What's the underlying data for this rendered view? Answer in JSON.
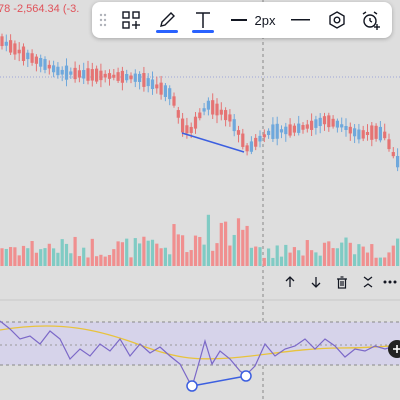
{
  "ticker": {
    "text": "78  -2,564.34 (-3.",
    "color": "#e0525a"
  },
  "toolbar": {
    "items": [
      {
        "icon": "drag-handle-icon"
      },
      {
        "icon": "templates-icon"
      },
      {
        "icon": "pencil-icon",
        "underline_color": "#2962ff"
      },
      {
        "icon": "text-icon",
        "underline_color": "#2962ff"
      },
      {
        "icon": "line-thickness-icon",
        "label": "2px"
      },
      {
        "icon": "line-style-icon"
      },
      {
        "icon": "hexagon-settings-icon"
      },
      {
        "icon": "alarm-add-icon"
      },
      {
        "icon": "more-icon"
      }
    ]
  },
  "mini_toolbar": {
    "items": [
      "arrow-up-icon",
      "arrow-down-icon",
      "trash-icon",
      "collapse-icon",
      "more-icon"
    ]
  },
  "colors": {
    "up": "#6fa8dc",
    "down": "#e57373",
    "volume_up": "#80cbc4",
    "volume_down": "#f08f8f",
    "rsi_line": "#7b68c8",
    "rsi_ma": "#e8c33c",
    "rsi_band": "#d6d3ea",
    "divergence": "#3c5fe0"
  }
}
